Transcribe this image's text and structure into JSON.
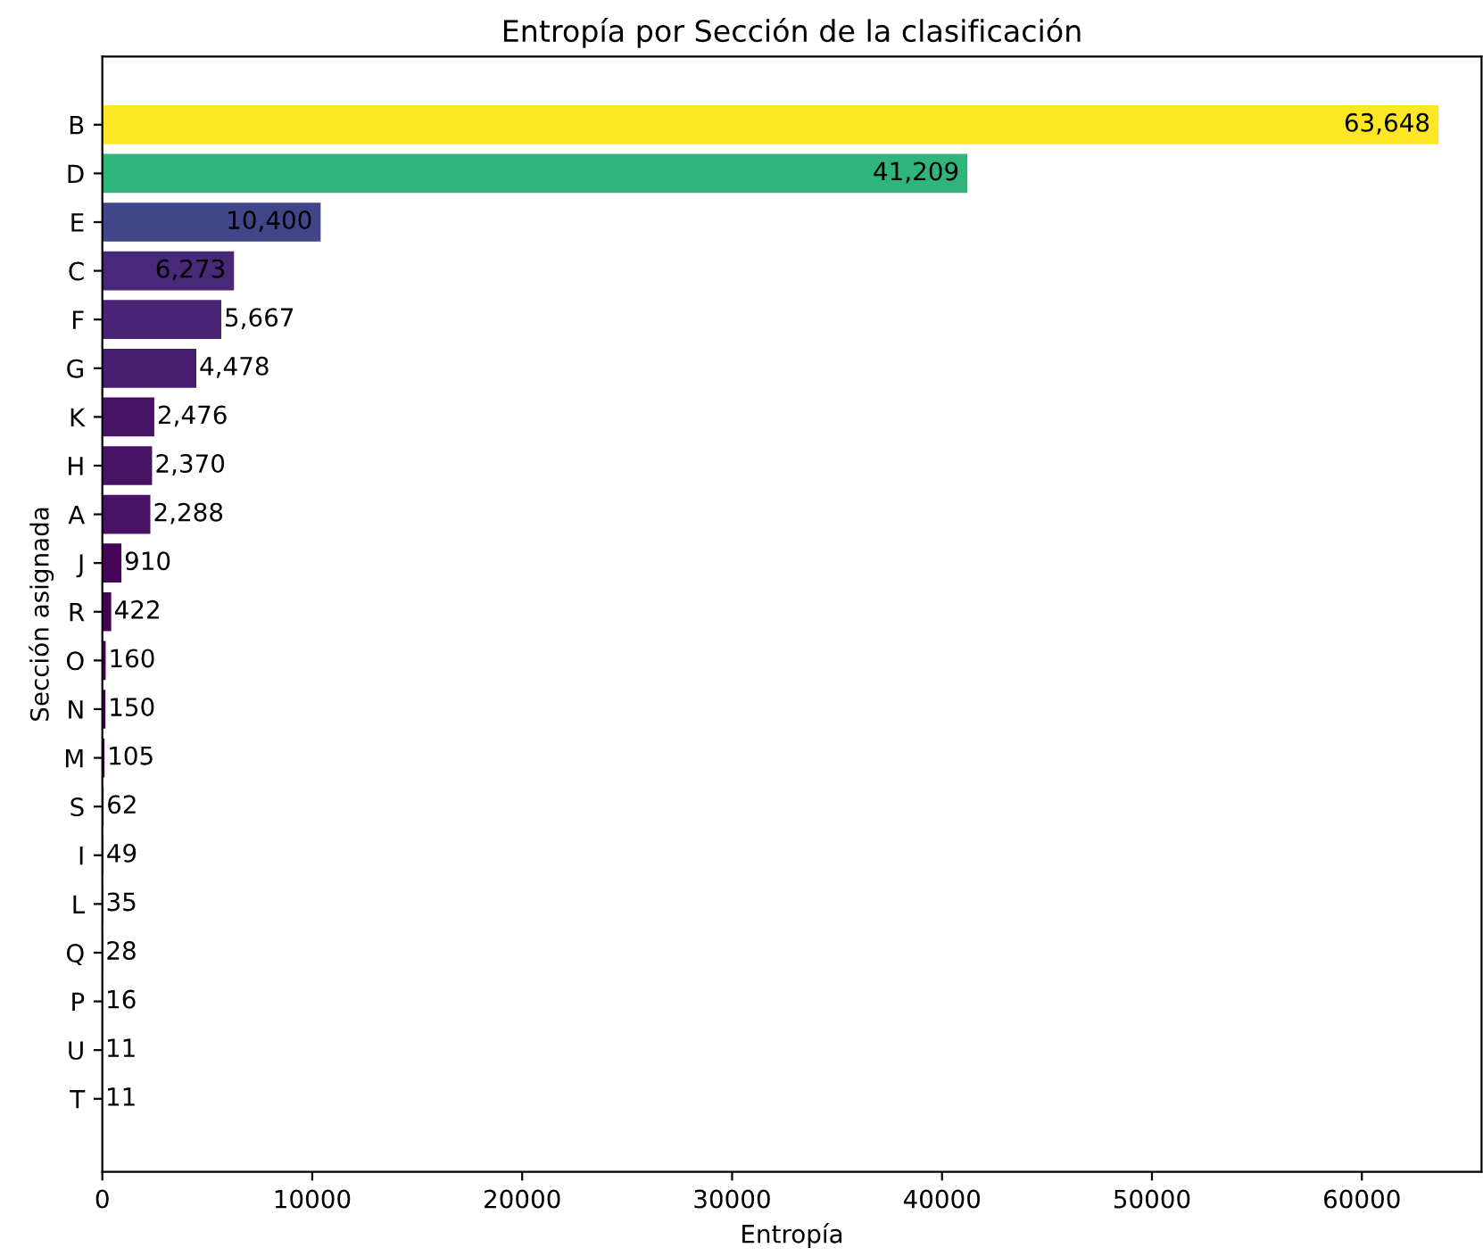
{
  "chart_data": {
    "type": "bar",
    "orientation": "horizontal",
    "title": "Entropía por Sección de la clasificación",
    "xlabel": "Entropía",
    "ylabel": "Sección asignada",
    "categories": [
      "B",
      "D",
      "E",
      "C",
      "F",
      "G",
      "K",
      "H",
      "A",
      "J",
      "R",
      "O",
      "N",
      "M",
      "S",
      "I",
      "L",
      "Q",
      "P",
      "U",
      "T"
    ],
    "values": [
      63648,
      41209,
      10400,
      6273,
      5667,
      4478,
      2476,
      2370,
      2288,
      910,
      422,
      160,
      150,
      105,
      62,
      49,
      35,
      28,
      16,
      11,
      11
    ],
    "colors": [
      "#fde725",
      "#2fb47c",
      "#404688",
      "#482878",
      "#482576",
      "#481f70",
      "#471365",
      "#471365",
      "#471164",
      "#450559",
      "#440256",
      "#440154",
      "#440154",
      "#440154",
      "#440154",
      "#440154",
      "#440154",
      "#440154",
      "#440154",
      "#440154",
      "#440154"
    ],
    "value_labels": [
      "63,648",
      "41,209",
      "10,400",
      "6,273",
      "5,667",
      "4,478",
      "2,476",
      "2,370",
      "2,288",
      "910",
      "422",
      "160",
      "150",
      "105",
      "62",
      "49",
      "35",
      "28",
      "16",
      "11",
      "11"
    ],
    "xlim": [
      0,
      65700
    ],
    "xticks": [
      0,
      10000,
      20000,
      30000,
      40000,
      50000,
      60000
    ],
    "grid": false,
    "legend": false
  }
}
